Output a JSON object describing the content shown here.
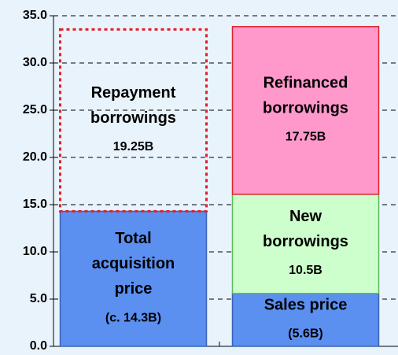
{
  "chart_data": {
    "type": "bar",
    "stacked": true,
    "categories": [
      null,
      null
    ],
    "series": [
      {
        "name": "Total acquisition price",
        "color": "#5b8ff0",
        "border": "#3a62b8",
        "values": [
          14.3,
          null
        ],
        "value_labels": [
          "(c. 14.3B)",
          null
        ]
      },
      {
        "name": "Repayment borrowings",
        "color": "none",
        "border": "#e0202a",
        "dashed": true,
        "values": [
          19.25,
          null
        ],
        "value_labels": [
          "19.25B",
          null
        ]
      },
      {
        "name": "Sales price",
        "color": "#5b8ff0",
        "border": "#3a62b8",
        "values": [
          null,
          5.6
        ],
        "value_labels": [
          null,
          "(5.6B)"
        ]
      },
      {
        "name": "New borrowings",
        "color": "#ccffcc",
        "border": "#5cb85c",
        "values": [
          null,
          10.5
        ],
        "value_labels": [
          null,
          "10.5B"
        ]
      },
      {
        "name": "Refinanced borrowings",
        "color": "#ff99cc",
        "border": "#e0202a",
        "values": [
          null,
          17.75
        ],
        "value_labels": [
          null,
          "17.75B"
        ]
      }
    ],
    "ylim": [
      0,
      35
    ],
    "yticks": [
      {
        "value": 0,
        "label": "0.0"
      },
      {
        "value": 5,
        "label": "5.0"
      },
      {
        "value": 10,
        "label": "10.0"
      },
      {
        "value": 15,
        "label": "15.0"
      },
      {
        "value": 20,
        "label": "20.0"
      },
      {
        "value": 25,
        "label": "25.0"
      },
      {
        "value": 30,
        "label": "30.0"
      },
      {
        "value": 35,
        "label": "35.0"
      }
    ],
    "grid": true
  }
}
